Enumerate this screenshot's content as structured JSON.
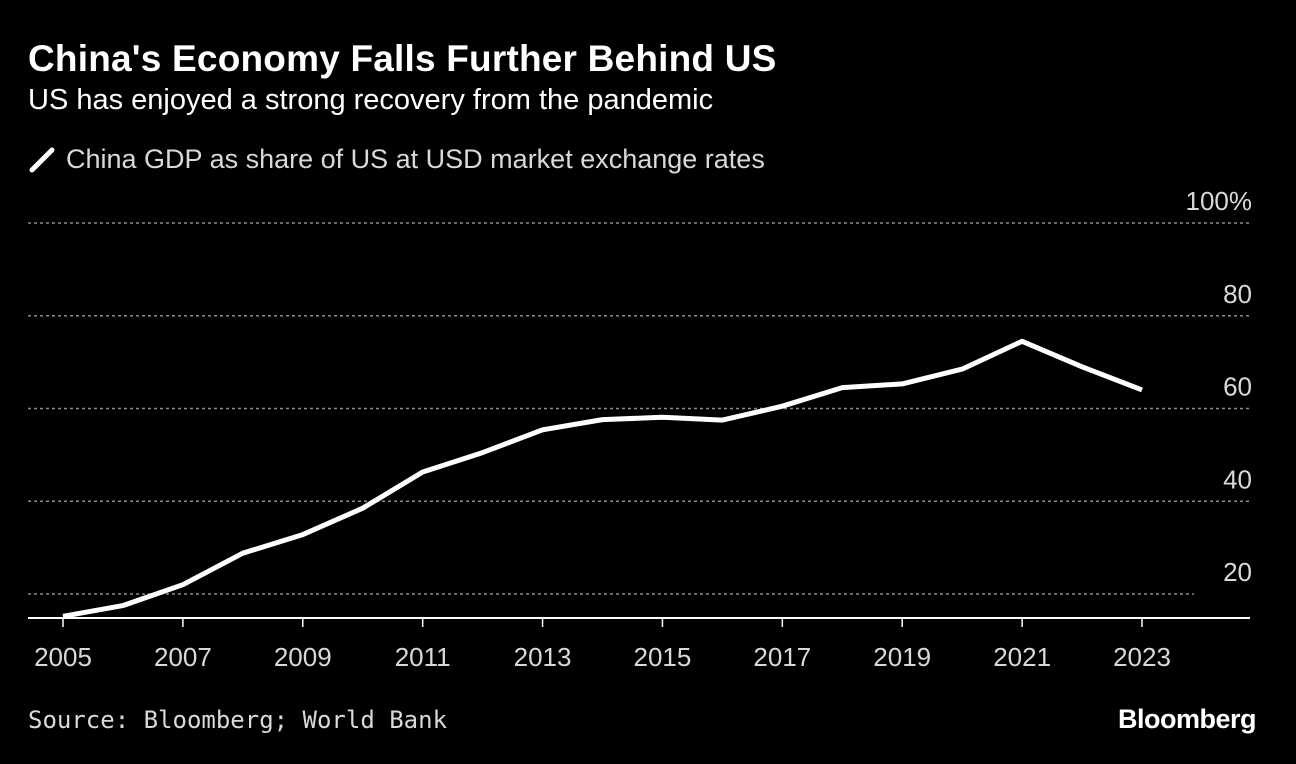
{
  "chart_data": {
    "type": "line",
    "title": "China's Economy Falls Further Behind US",
    "subtitle": "US has enjoyed a strong recovery from the pandemic",
    "series": [
      {
        "name": "China GDP as share of US at USD market exchange rates",
        "color": "#ffffff",
        "x": [
          2005,
          2006,
          2007,
          2008,
          2009,
          2010,
          2011,
          2012,
          2013,
          2014,
          2015,
          2016,
          2017,
          2018,
          2019,
          2020,
          2021,
          2022,
          2023
        ],
        "values": [
          15.2,
          17.5,
          22.0,
          28.8,
          32.8,
          38.5,
          46.3,
          50.5,
          55.4,
          57.6,
          58.1,
          57.5,
          60.5,
          64.5,
          65.3,
          68.5,
          74.5,
          69.0,
          64.0
        ]
      }
    ],
    "x_ticks": [
      "2005",
      "2007",
      "2009",
      "2011",
      "2013",
      "2015",
      "2017",
      "2019",
      "2021",
      "2023"
    ],
    "y_ticks": [
      "20",
      "40",
      "60",
      "80",
      "100%"
    ],
    "y_tick_values": [
      20,
      40,
      60,
      80,
      100
    ],
    "xlim": [
      2005,
      2023
    ],
    "ylim": [
      15,
      100
    ],
    "grid": true,
    "legend_position": "top-left",
    "source": "Source: Bloomberg; World Bank",
    "brand": "Bloomberg"
  }
}
